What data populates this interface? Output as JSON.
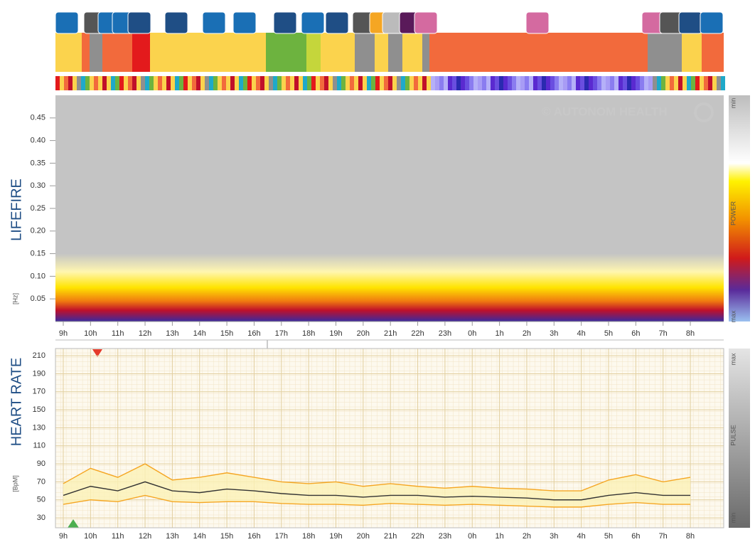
{
  "watermark": "© AUTONOM HEALTH",
  "chart_data": [
    {
      "type": "spectrogram",
      "title": "LIFEFIRE",
      "y_label": "[Hz]",
      "categories": [
        "9h",
        "10h",
        "11h",
        "12h",
        "13h",
        "14h",
        "15h",
        "16h",
        "17h",
        "18h",
        "19h",
        "20h",
        "21h",
        "22h",
        "23h",
        "0h",
        "1h",
        "2h",
        "3h",
        "4h",
        "5h",
        "6h",
        "7h",
        "8h"
      ],
      "ylim": [
        0,
        0.5
      ],
      "yticks": [
        0.05,
        {
          "value": 0.1,
          "label": "0.10"
        },
        0.15,
        {
          "value": 0.2,
          "label": "0.20"
        },
        0.25,
        {
          "value": 0.3,
          "label": "0.30"
        },
        0.35,
        {
          "value": 0.4,
          "label": "0.40"
        },
        0.45
      ],
      "colorbar_labels": [
        "min",
        "POWER",
        "max"
      ]
    },
    {
      "type": "line",
      "title": "HEART RATE",
      "y_label": "[BpM]",
      "categories": [
        "9h",
        "10h",
        "11h",
        "12h",
        "13h",
        "14h",
        "15h",
        "16h",
        "17h",
        "18h",
        "19h",
        "20h",
        "21h",
        "22h",
        "23h",
        "0h",
        "1h",
        "2h",
        "3h",
        "4h",
        "5h",
        "6h",
        "7h",
        "8h"
      ],
      "ylim": [
        19,
        218
      ],
      "yticks": [
        30,
        50,
        70,
        90,
        110,
        130,
        150,
        170,
        190,
        210
      ],
      "grid": true,
      "colorbar_labels": [
        "max",
        "PULSE",
        "min"
      ],
      "series": [
        {
          "color": "#f5a623",
          "values": [
            68,
            85,
            75,
            90,
            72,
            75,
            80,
            75,
            70,
            68,
            70,
            65,
            68,
            65,
            63,
            65,
            63,
            62,
            60,
            60,
            72,
            78,
            70,
            75
          ]
        },
        {
          "color": "#333333",
          "values": [
            55,
            65,
            60,
            70,
            60,
            58,
            62,
            60,
            57,
            55,
            55,
            53,
            55,
            55,
            53,
            54,
            53,
            52,
            50,
            50,
            55,
            58,
            55,
            55
          ]
        },
        {
          "color": "#f5a623",
          "values": [
            45,
            50,
            48,
            55,
            48,
            47,
            48,
            48,
            46,
            45,
            45,
            44,
            46,
            45,
            44,
            45,
            44,
            43,
            42,
            42,
            45,
            47,
            45,
            45
          ]
        }
      ]
    }
  ]
}
